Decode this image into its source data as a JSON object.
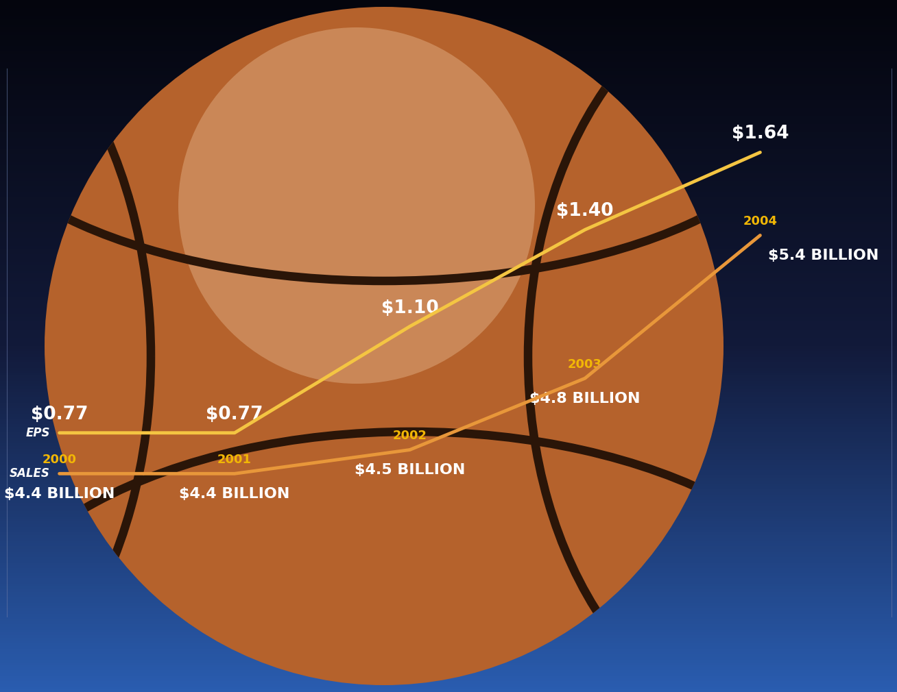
{
  "chart_data": {
    "type": "line",
    "categories": [
      "2000",
      "2001",
      "2002",
      "2003",
      "2004"
    ],
    "series": [
      {
        "name": "EPS",
        "color": "#f4c542",
        "values": [
          0.77,
          0.77,
          1.1,
          1.4,
          1.64
        ],
        "value_labels": [
          "$0.77",
          "$0.77",
          "$1.10",
          "$1.40",
          "$1.64"
        ]
      },
      {
        "name": "SALES",
        "color": "#e8973a",
        "axis": "y2",
        "values": [
          4.4,
          4.4,
          4.5,
          4.8,
          5.4
        ],
        "value_labels": [
          "$4.4 BILLION",
          "$4.4 BILLION",
          "$4.5 BILLION",
          "$4.8 BILLION",
          "$5.4 BILLION"
        ]
      }
    ],
    "ylim": [
      0.2,
      1.9
    ],
    "y2lim": [
      3.8,
      6.1
    ],
    "data_labels": true,
    "tick_labels": false,
    "grid": false
  }
}
